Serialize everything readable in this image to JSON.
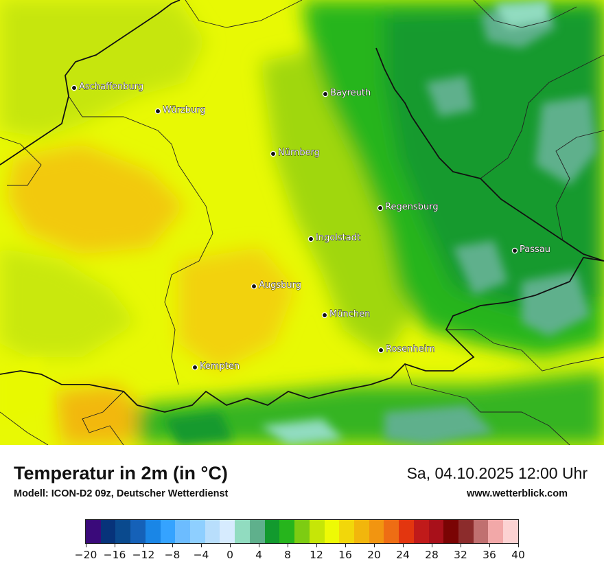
{
  "title": "Temperatur in 2m (in °C)",
  "subtitle": "Modell: ICON-D2 09z, Deutscher Wetterdienst",
  "datetime": "Sa, 04.10.2025 12:00 Uhr",
  "website": "www.wetterblick.com",
  "cities": [
    {
      "name": "Aschaffenburg"
    },
    {
      "name": "Würzburg"
    },
    {
      "name": "Bayreuth"
    },
    {
      "name": "Nürnberg"
    },
    {
      "name": "Regensburg"
    },
    {
      "name": "Ingolstadt"
    },
    {
      "name": "Passau"
    },
    {
      "name": "Augsburg"
    },
    {
      "name": "München"
    },
    {
      "name": "Rosenheim"
    },
    {
      "name": "Kempten"
    }
  ],
  "legend": {
    "tick_labels": [
      "−20",
      "−16",
      "−12",
      "−8",
      "−4",
      "0",
      "4",
      "8",
      "12",
      "16",
      "20",
      "24",
      "28",
      "32",
      "36",
      "40"
    ],
    "colors": [
      "#3a0a7a",
      "#07337a",
      "#0a4a8e",
      "#1561b8",
      "#1a86e6",
      "#35a3ff",
      "#6cbcff",
      "#8ecfff",
      "#b8defc",
      "#d6ebfe",
      "#91dcc0",
      "#5fb08c",
      "#129a2e",
      "#26b51c",
      "#7dcc12",
      "#c6e607",
      "#eefa05",
      "#f2d70a",
      "#f2b60c",
      "#f29510",
      "#ee6d14",
      "#e3360f",
      "#c01a1a",
      "#a8101a",
      "#7a0404",
      "#8c2c2c",
      "#c07070",
      "#f2a8a8",
      "#fcd2d2"
    ]
  }
}
